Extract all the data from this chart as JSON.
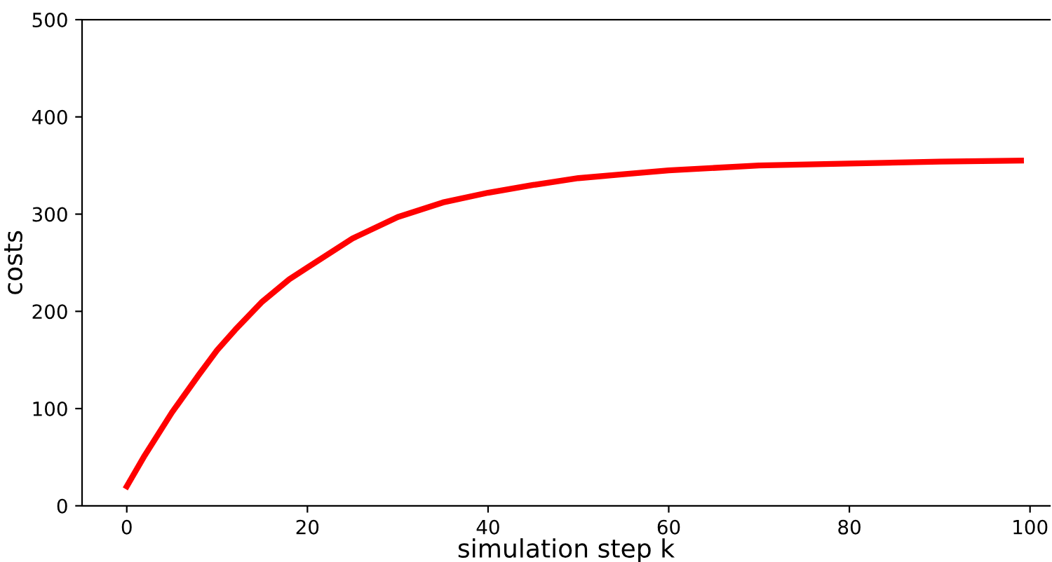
{
  "chart_data": {
    "type": "line",
    "xlabel": "simulation step k",
    "ylabel": "costs",
    "series": [
      {
        "color": "#ff0000",
        "x": [
          0,
          2,
          5,
          8,
          10,
          12,
          15,
          18,
          20,
          25,
          30,
          35,
          40,
          45,
          50,
          55,
          60,
          70,
          80,
          90,
          99
        ],
        "values": [
          20,
          52,
          96,
          135,
          160,
          181,
          210,
          233,
          245,
          275,
          297,
          312,
          322,
          330,
          337,
          341,
          345,
          350,
          352,
          354,
          355
        ]
      }
    ],
    "xlim": [
      -4.95,
      102.2
    ],
    "ylim": [
      0,
      500
    ],
    "xticks": [
      0,
      20,
      40,
      60,
      80,
      100
    ],
    "yticks": [
      0,
      100,
      200,
      300,
      400,
      500
    ],
    "grid": false,
    "legend": false,
    "marker": "none",
    "line_style": "solid"
  }
}
